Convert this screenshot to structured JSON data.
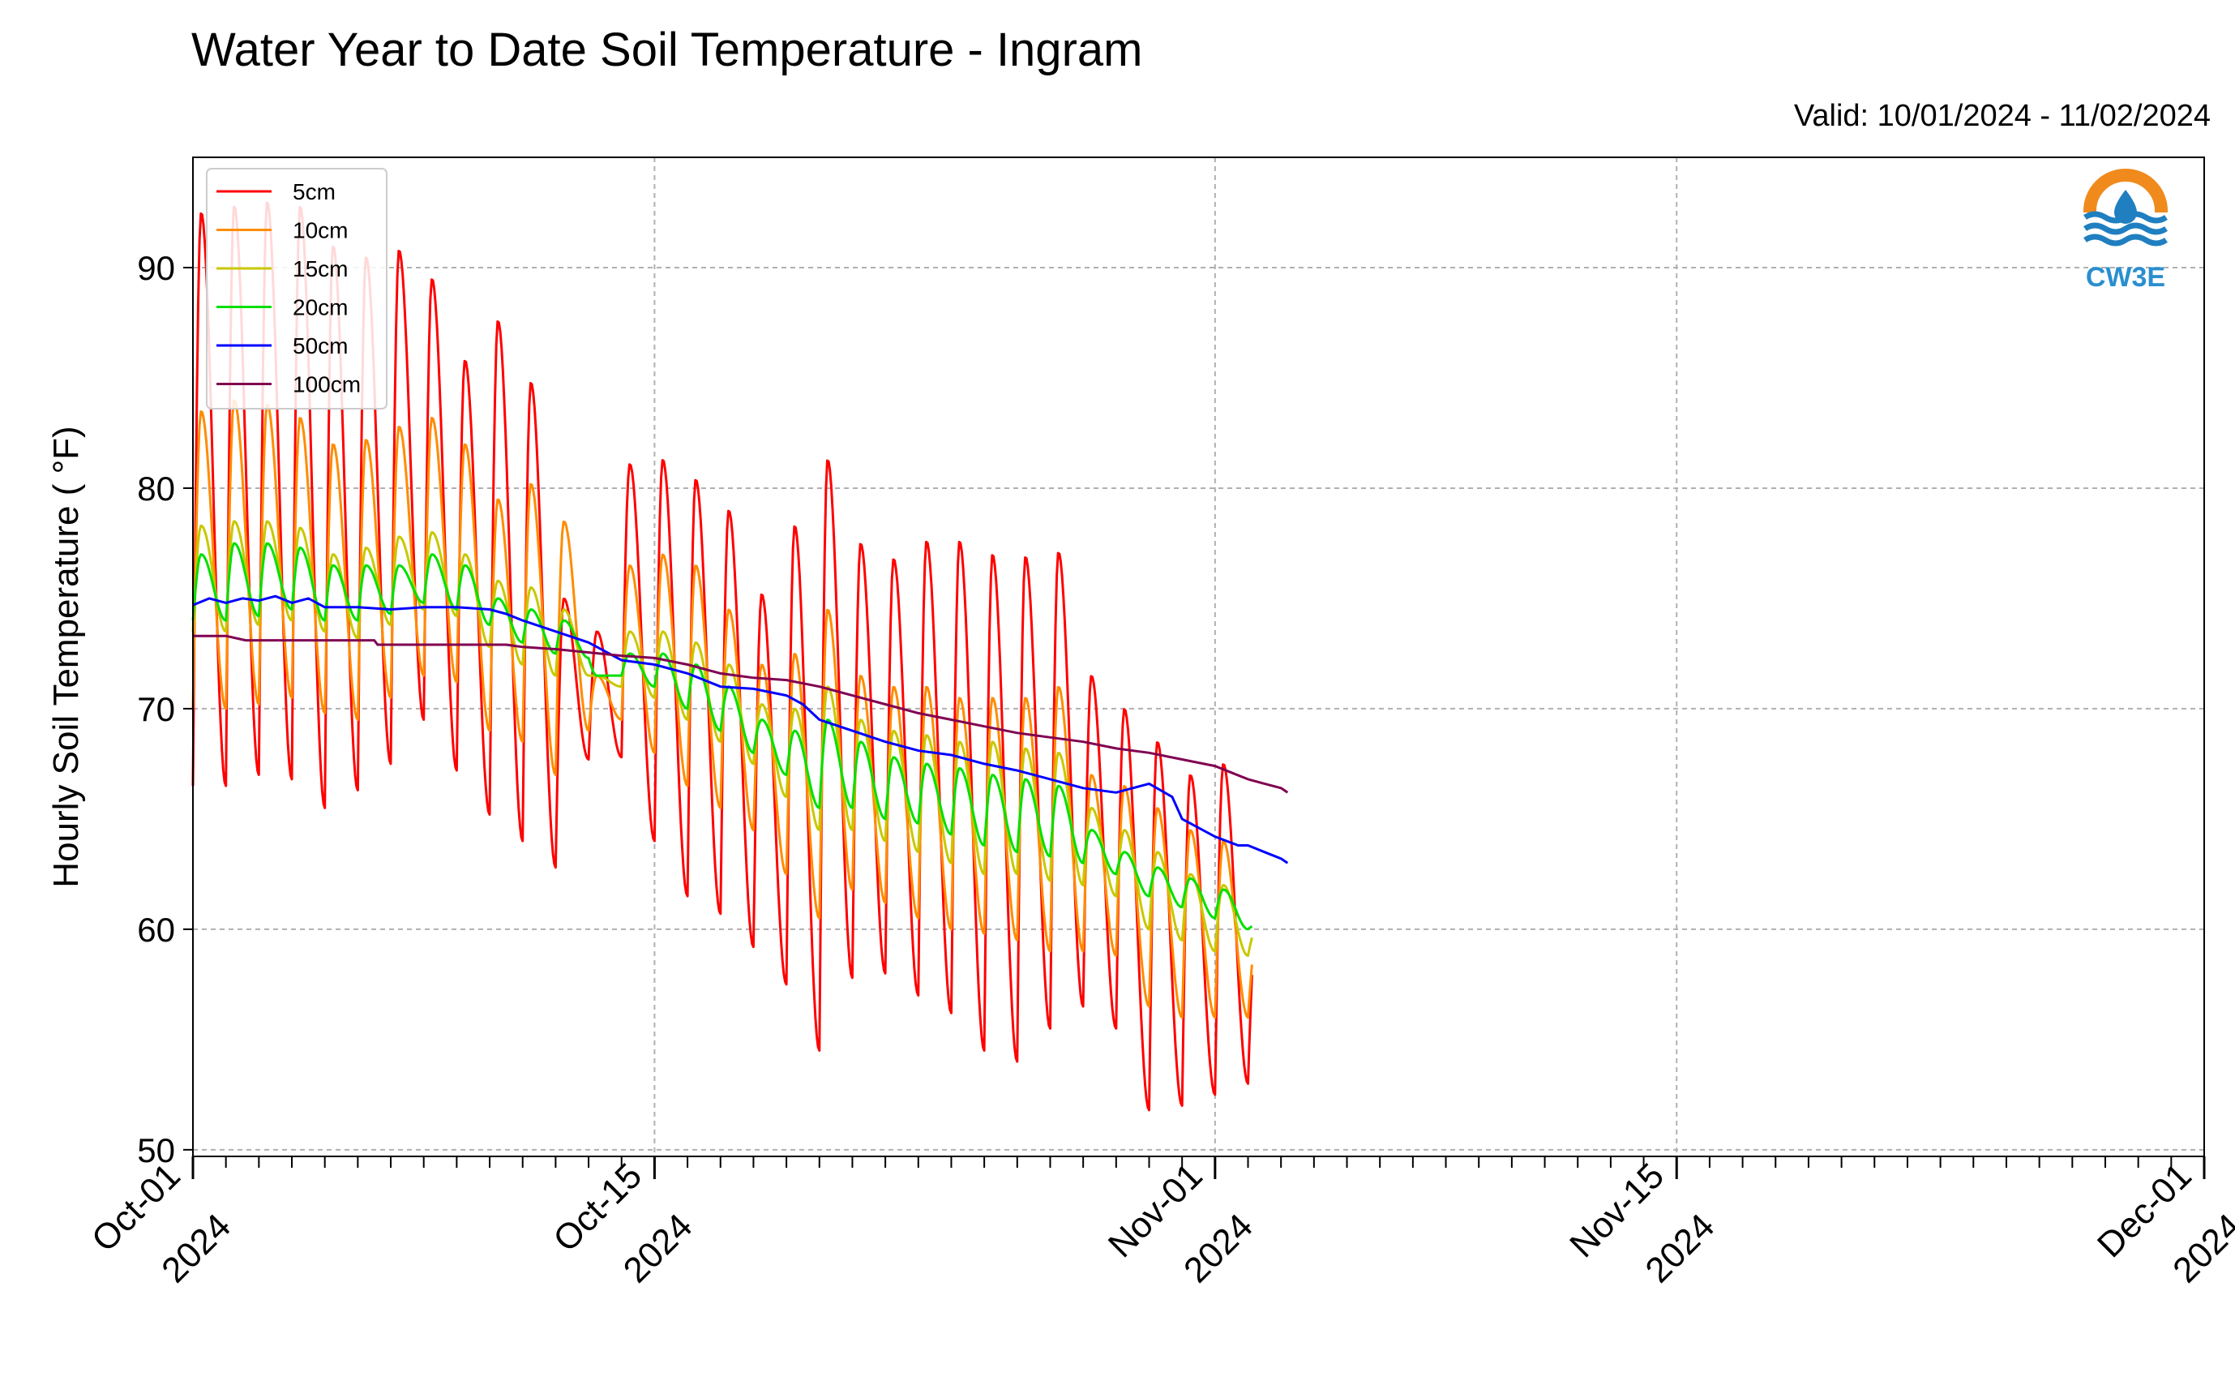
{
  "chart_data": {
    "type": "line",
    "title": "Water Year to Date Soil Temperature - Ingram",
    "subtitle": "Valid: 10/01/2024 - 11/02/2024",
    "xlabel": "",
    "ylabel": "Hourly Soil Temperature ( $^\\circ$F)",
    "ylabel_display": "Hourly Soil Temperature ( °F)",
    "xlim": [
      "2024-10-01",
      "2024-12-01"
    ],
    "ylim": [
      49.7,
      95
    ],
    "yticks": [
      50,
      60,
      70,
      80,
      90
    ],
    "xticks": [
      {
        "date": "2024-10-01",
        "label": [
          "Oct-01",
          "2024"
        ]
      },
      {
        "date": "2024-10-15",
        "label": [
          "Oct-15",
          "2024"
        ]
      },
      {
        "date": "2024-11-01",
        "label": [
          "Nov-01",
          "2024"
        ]
      },
      {
        "date": "2024-11-15",
        "label": [
          "Nov-15",
          "2024"
        ]
      },
      {
        "date": "2024-12-01",
        "label": [
          "Dec-01",
          "2024"
        ]
      }
    ],
    "grid": true,
    "legend_position": "top-left",
    "logo_text": "CW3E",
    "series": [
      {
        "name": "5cm",
        "color": "#ff0000",
        "max": [
          92.5,
          92.8,
          93.0,
          92.8,
          91.0,
          90.5,
          90.8,
          89.5,
          85.8,
          87.6,
          84.8,
          75.0,
          73.5,
          81.1,
          81.3,
          80.4,
          79.0,
          75.2,
          78.3,
          81.3,
          77.5,
          76.8,
          77.6,
          77.6,
          77.0,
          76.9,
          77.1,
          71.5,
          70.0,
          68.5,
          67.0,
          67.5,
          60.2
        ],
        "min": [
          66.5,
          67.0,
          66.8,
          65.5,
          66.3,
          67.5,
          69.5,
          67.2,
          65.2,
          64.0,
          62.8,
          67.7,
          67.8,
          64.0,
          61.5,
          60.7,
          59.2,
          57.5,
          54.5,
          57.8,
          58.0,
          57.0,
          56.2,
          54.5,
          54.0,
          55.5,
          56.5,
          55.5,
          51.8,
          52.0,
          52.5,
          53.0,
          53.0
        ]
      },
      {
        "name": "10cm",
        "color": "#ff8c00",
        "max": [
          83.5,
          84.0,
          83.8,
          83.2,
          82.0,
          82.2,
          82.8,
          83.2,
          82.0,
          79.5,
          80.2,
          78.5,
          71.5,
          76.5,
          77.0,
          76.5,
          74.5,
          72.0,
          72.5,
          74.5,
          71.5,
          71.0,
          71.0,
          70.5,
          70.5,
          70.5,
          71.0,
          67.0,
          66.5,
          65.5,
          64.5,
          64.0,
          59.5
        ],
        "min": [
          70.0,
          70.2,
          70.5,
          69.8,
          69.5,
          70.5,
          71.5,
          71.2,
          69.0,
          68.5,
          67.0,
          69.0,
          69.5,
          68.0,
          66.5,
          65.5,
          64.5,
          62.5,
          60.5,
          61.8,
          61.2,
          60.5,
          60.0,
          59.8,
          59.5,
          59.0,
          59.0,
          58.8,
          56.5,
          56.0,
          56.0,
          56.0,
          56.0
        ]
      },
      {
        "name": "15cm",
        "color": "#c8c800",
        "max": [
          78.3,
          78.5,
          78.5,
          78.2,
          77.0,
          77.3,
          77.8,
          78.0,
          77.0,
          75.8,
          75.5,
          74.5,
          71.5,
          73.5,
          73.5,
          73.0,
          72.0,
          70.2,
          70.0,
          71.0,
          69.5,
          69.0,
          68.8,
          68.5,
          68.5,
          68.2,
          68.0,
          65.5,
          64.5,
          63.5,
          62.5,
          62.0,
          60.0
        ],
        "min": [
          73.5,
          73.8,
          74.0,
          73.5,
          73.2,
          73.8,
          74.5,
          74.2,
          72.8,
          72.0,
          71.5,
          71.5,
          71.0,
          70.5,
          69.5,
          68.5,
          67.5,
          66.0,
          64.5,
          64.5,
          64.0,
          63.5,
          63.0,
          62.5,
          62.5,
          62.2,
          62.0,
          61.5,
          60.0,
          59.5,
          59.0,
          58.8,
          58.8
        ]
      },
      {
        "name": "20cm",
        "color": "#00e000",
        "max": [
          77.0,
          77.5,
          77.5,
          77.3,
          76.5,
          76.5,
          76.5,
          77.0,
          76.5,
          75.0,
          74.5,
          74.0,
          71.5,
          72.5,
          72.5,
          72.0,
          71.0,
          69.5,
          69.0,
          69.5,
          68.5,
          67.8,
          67.5,
          67.3,
          67.0,
          66.8,
          66.5,
          64.5,
          63.5,
          62.8,
          62.3,
          61.8,
          60.2
        ],
        "min": [
          74.0,
          74.2,
          74.5,
          74.0,
          74.0,
          74.3,
          74.8,
          74.5,
          73.8,
          73.0,
          72.5,
          72.3,
          71.5,
          71.0,
          70.0,
          69.0,
          68.0,
          67.0,
          65.5,
          65.5,
          65.0,
          64.8,
          64.3,
          63.8,
          63.5,
          63.3,
          63.0,
          62.5,
          61.5,
          61.0,
          60.5,
          60.0,
          59.8
        ]
      },
      {
        "name": "50cm",
        "color": "#0000ff",
        "points": [
          [
            0,
            74.7
          ],
          [
            0.5,
            75.0
          ],
          [
            1,
            74.8
          ],
          [
            1.5,
            75.0
          ],
          [
            2,
            74.9
          ],
          [
            2.5,
            75.1
          ],
          [
            3,
            74.8
          ],
          [
            3.5,
            75.0
          ],
          [
            4,
            74.6
          ],
          [
            5,
            74.6
          ],
          [
            6,
            74.5
          ],
          [
            7,
            74.6
          ],
          [
            8,
            74.6
          ],
          [
            9,
            74.5
          ],
          [
            9.5,
            74.3
          ],
          [
            10,
            74.0
          ],
          [
            11,
            73.5
          ],
          [
            12,
            73.0
          ],
          [
            12.5,
            72.6
          ],
          [
            13,
            72.2
          ],
          [
            14,
            72.0
          ],
          [
            15,
            71.6
          ],
          [
            16,
            71.0
          ],
          [
            17,
            70.9
          ],
          [
            18,
            70.6
          ],
          [
            18.5,
            70.2
          ],
          [
            19,
            69.5
          ],
          [
            20,
            69.0
          ],
          [
            21,
            68.5
          ],
          [
            22,
            68.1
          ],
          [
            23,
            67.9
          ],
          [
            24,
            67.5
          ],
          [
            25,
            67.2
          ],
          [
            26,
            66.8
          ],
          [
            27,
            66.4
          ],
          [
            28,
            66.2
          ],
          [
            29,
            66.6
          ],
          [
            29.7,
            66.0
          ],
          [
            30,
            65.0
          ],
          [
            31,
            64.2
          ],
          [
            31.7,
            63.8
          ],
          [
            32,
            63.8
          ],
          [
            32.5,
            63.5
          ],
          [
            33,
            63.2
          ],
          [
            33.2,
            63.0
          ]
        ]
      },
      {
        "name": "100cm",
        "color": "#800050",
        "points": [
          [
            0,
            73.3
          ],
          [
            1,
            73.3
          ],
          [
            1.6,
            73.1
          ],
          [
            3,
            73.1
          ],
          [
            5.5,
            73.1
          ],
          [
            5.6,
            72.9
          ],
          [
            9.5,
            72.9
          ],
          [
            10,
            72.8
          ],
          [
            11,
            72.7
          ],
          [
            13,
            72.4
          ],
          [
            14,
            72.3
          ],
          [
            15,
            72.0
          ],
          [
            16,
            71.6
          ],
          [
            17,
            71.4
          ],
          [
            18,
            71.3
          ],
          [
            19,
            71.0
          ],
          [
            20,
            70.6
          ],
          [
            21,
            70.2
          ],
          [
            22,
            69.8
          ],
          [
            23,
            69.5
          ],
          [
            24,
            69.2
          ],
          [
            25,
            68.9
          ],
          [
            26,
            68.7
          ],
          [
            27,
            68.5
          ],
          [
            28,
            68.2
          ],
          [
            29,
            68.0
          ],
          [
            30,
            67.7
          ],
          [
            31,
            67.4
          ],
          [
            31.5,
            67.1
          ],
          [
            32,
            66.8
          ],
          [
            32.5,
            66.6
          ],
          [
            33,
            66.4
          ],
          [
            33.2,
            66.2
          ]
        ]
      }
    ]
  },
  "brand_colors": {
    "logo_orange": "#f08a1c",
    "logo_blue": "#1f7fc0",
    "logo_text": "#2a8fcf"
  }
}
